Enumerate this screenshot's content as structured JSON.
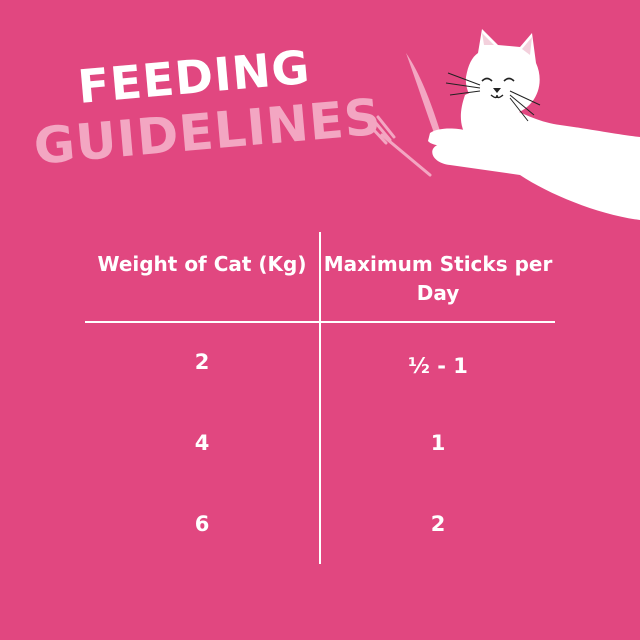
{
  "title": {
    "line1": "FEEDING",
    "line2": "GUIDELINES"
  },
  "colors": {
    "background": "#e14780",
    "title_primary": "#ffffff",
    "title_secondary": "#f3a6c2"
  },
  "illustration": "cat-with-knife-and-fork",
  "table": {
    "headers": [
      "Weight of Cat (Kg)",
      "Maximum Sticks per Day"
    ],
    "rows": [
      [
        "2",
        "½ - 1"
      ],
      [
        "4",
        "1"
      ],
      [
        "6",
        "2"
      ]
    ]
  }
}
